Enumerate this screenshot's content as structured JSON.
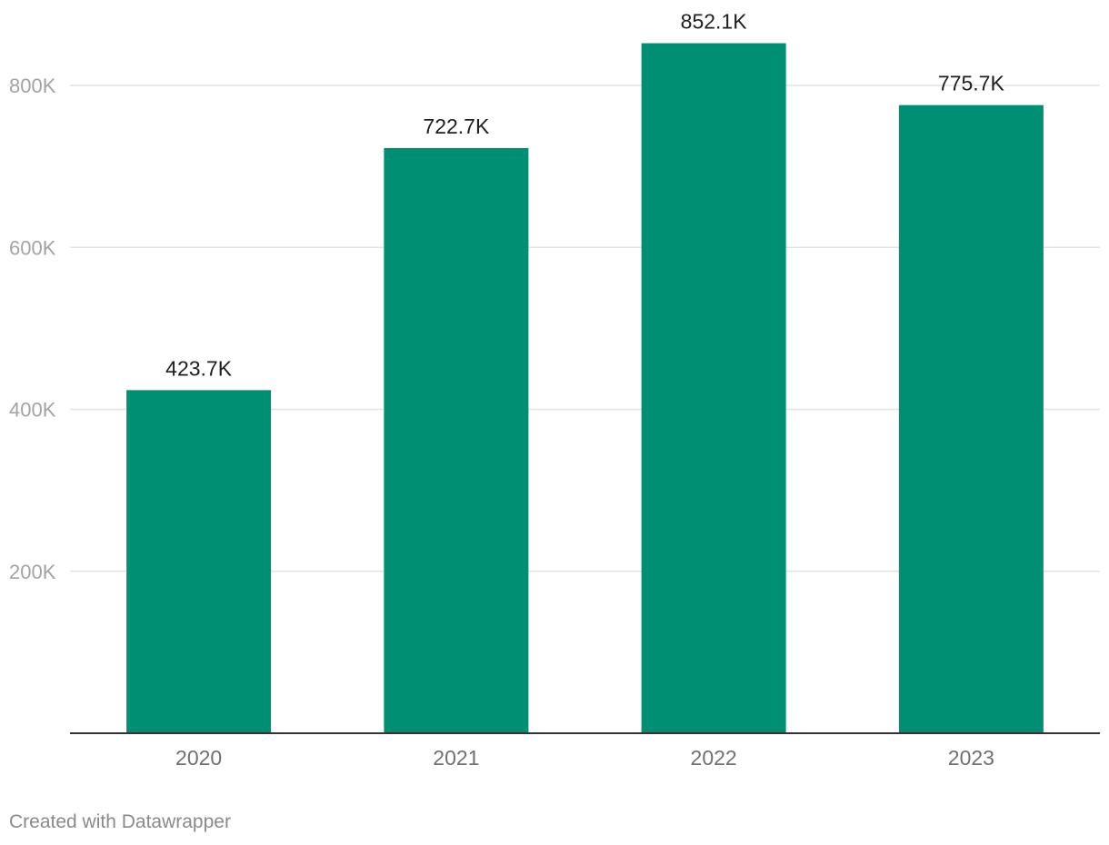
{
  "chart_data": {
    "type": "bar",
    "title": "",
    "xlabel": "",
    "ylabel": "",
    "categories": [
      "2020",
      "2021",
      "2022",
      "2023"
    ],
    "values": [
      423700,
      722700,
      852100,
      775700
    ],
    "data_labels": [
      "423.7K",
      "722.7K",
      "852.1K",
      "775.7K"
    ],
    "ylim": [
      0,
      900000
    ],
    "y_ticks": [
      {
        "value": 200000,
        "label": "200K"
      },
      {
        "value": 400000,
        "label": "400K"
      },
      {
        "value": 600000,
        "label": "600K"
      },
      {
        "value": 800000,
        "label": "800K"
      }
    ],
    "bar_color": "#008f72",
    "grid": true,
    "legend": "none"
  },
  "footer": {
    "credit": "Created with Datawrapper"
  }
}
